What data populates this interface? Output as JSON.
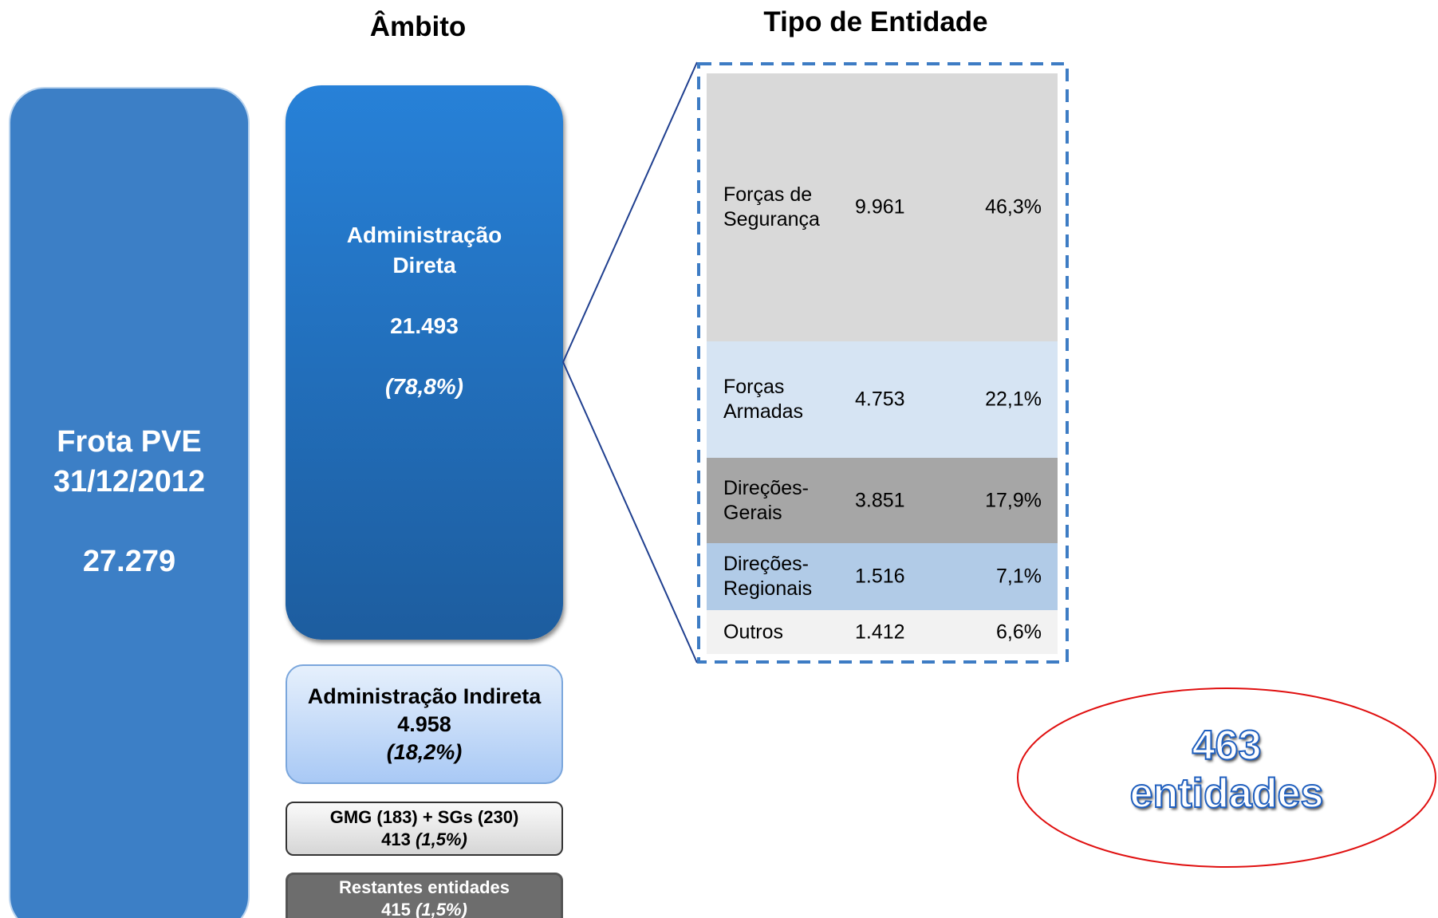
{
  "headers": {
    "ambito": "Âmbito",
    "tipo": "Tipo de Entidade"
  },
  "total": {
    "title": "Frota PVE",
    "date": "31/12/2012",
    "value": "27.279"
  },
  "direta": {
    "label": "Administração Direta",
    "value": "21.493",
    "share": "(78,8%)"
  },
  "indireta": {
    "label": "Administração Indireta",
    "value": "4.958",
    "share": "(18,2%)"
  },
  "gmg": {
    "label": "GMG (183) + SGs (230)",
    "value": "413",
    "share": "(1,5%)"
  },
  "restantes": {
    "label": "Restantes entidades",
    "value": "415",
    "share": "(1,5%)"
  },
  "table": {
    "rows": [
      [
        "Forças de Segurança",
        "9.961",
        "46,3%"
      ],
      [
        "Forças Armadas",
        "4.753",
        "22,1%"
      ],
      [
        "Direções-Gerais",
        "3.851",
        "17,9%"
      ],
      [
        "Direções-Regionais",
        "1.516",
        "7,1%"
      ],
      [
        "Outros",
        "1.412",
        "6,6%"
      ]
    ]
  },
  "entities": {
    "count": "463",
    "label": "entidades"
  }
}
